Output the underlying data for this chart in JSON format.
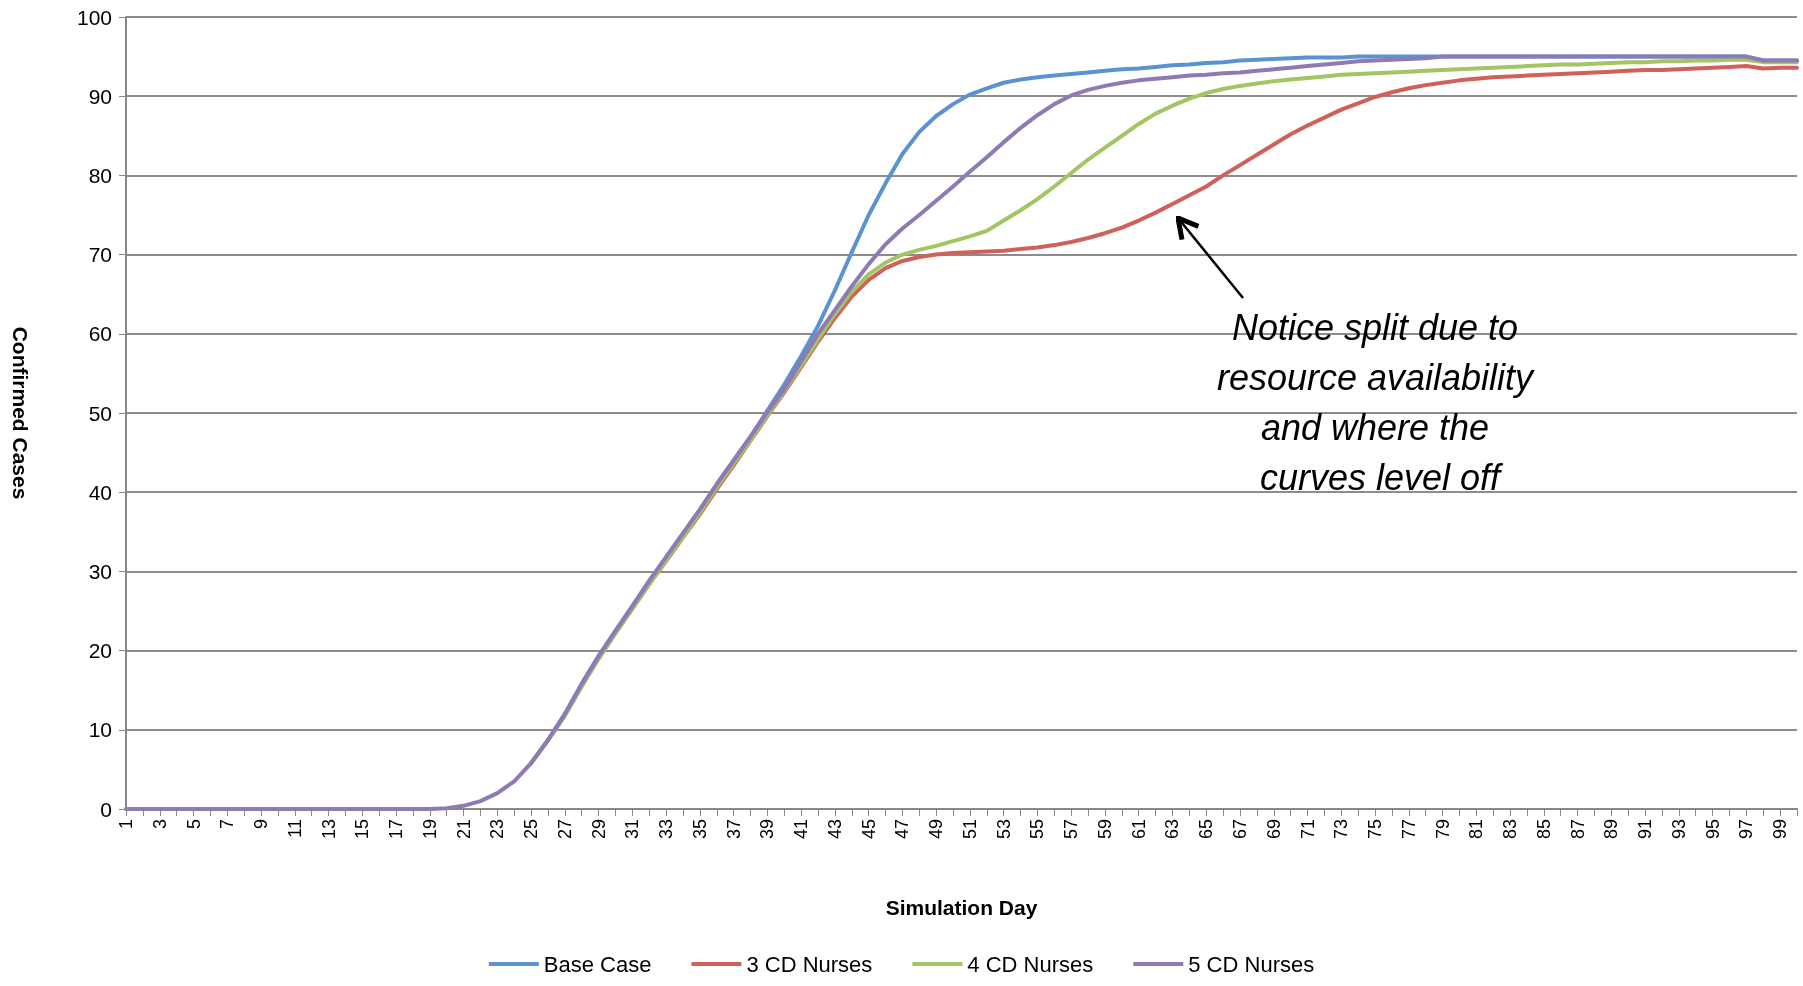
{
  "chart_data": {
    "type": "line",
    "xlabel": "Simulation Day",
    "ylabel": "Confirmed Cases",
    "categories": [
      "1",
      null,
      "3",
      null,
      "5",
      null,
      "7",
      null,
      "9",
      null,
      "11",
      null,
      "13",
      null,
      "15",
      null,
      "17",
      null,
      "19",
      null,
      "21",
      null,
      "23",
      null,
      "25",
      null,
      "27",
      null,
      "29",
      null,
      "31",
      null,
      "33",
      null,
      "35",
      null,
      "37",
      null,
      "39",
      null,
      "41",
      null,
      "43",
      null,
      "45",
      null,
      "47",
      null,
      "49",
      null,
      "51",
      null,
      "53",
      null,
      "55",
      null,
      "57",
      null,
      "59",
      null,
      "61",
      null,
      "63",
      null,
      "65",
      null,
      "67",
      null,
      "69",
      null,
      "71",
      null,
      "73",
      null,
      "75",
      null,
      "77",
      null,
      "79",
      null,
      "81",
      null,
      "83",
      null,
      "85",
      null,
      "87",
      null,
      "89",
      null,
      "91",
      null,
      "93",
      null,
      "95",
      null,
      "97",
      null,
      "99",
      null
    ],
    "ylim": [
      0,
      100
    ],
    "yticks": [
      0,
      10,
      20,
      30,
      40,
      50,
      60,
      70,
      80,
      90,
      100
    ],
    "grid": "y",
    "legend": "bottom",
    "marker": "none",
    "line_style": "solid",
    "annotations": [
      "Notice split due to resource availability and where the curves level off"
    ],
    "series": [
      {
        "name": "Base Case",
        "color": "#5a93cf",
        "values": [
          null,
          null,
          null,
          null,
          null,
          null,
          null,
          null,
          null,
          null,
          null,
          null,
          null,
          null,
          null,
          null,
          null,
          null,
          null,
          null,
          null,
          null,
          null,
          null,
          5.8,
          8.7,
          12,
          15.8,
          19.3,
          22.5,
          25.6,
          28.8,
          31.8,
          34.8,
          37.8,
          41,
          44,
          47,
          50.3,
          53.6,
          57.2,
          61,
          65.5,
          70.3,
          75,
          79,
          82.7,
          85.5,
          87.5,
          89,
          90.2,
          91,
          91.7,
          92.1,
          92.4,
          92.6,
          92.8,
          93,
          93.2,
          93.4,
          93.5,
          93.7,
          93.9,
          94,
          94.2,
          94.3,
          94.5,
          94.6,
          94.7,
          94.8,
          94.9,
          94.9,
          94.9,
          95,
          95,
          95,
          95,
          95,
          95,
          95,
          95,
          95,
          95,
          95,
          95,
          95,
          95,
          95,
          95,
          95,
          95,
          95,
          95,
          95,
          95,
          95,
          95,
          94.5,
          94.5,
          94.5
        ]
      },
      {
        "name": "3 CD Nurses",
        "color": "#d0605a",
        "values": [
          null,
          null,
          null,
          null,
          null,
          null,
          null,
          null,
          null,
          null,
          null,
          null,
          null,
          null,
          null,
          null,
          null,
          null,
          null,
          null,
          null,
          null,
          null,
          null,
          5.8,
          8.7,
          11.8,
          15.5,
          19,
          22.2,
          25.3,
          28.4,
          31.3,
          34.3,
          37.2,
          40.4,
          43.4,
          46.5,
          49.6,
          52.6,
          55.8,
          59,
          62,
          64.7,
          66.8,
          68.3,
          69.2,
          69.7,
          70,
          70.2,
          70.3,
          70.4,
          70.5,
          70.7,
          70.9,
          71.2,
          71.6,
          72.1,
          72.7,
          73.4,
          74.3,
          75.3,
          76.4,
          77.5,
          78.6,
          80,
          81.3,
          82.6,
          83.9,
          85.2,
          86.3,
          87.3,
          88.3,
          89.1,
          89.9,
          90.5,
          91,
          91.4,
          91.7,
          92,
          92.2,
          92.4,
          92.5,
          92.6,
          92.7,
          92.8,
          92.9,
          93,
          93.1,
          93.2,
          93.3,
          93.3,
          93.4,
          93.5,
          93.6,
          93.7,
          93.8,
          93.5,
          93.6,
          93.6
        ]
      },
      {
        "name": "4 CD Nurses",
        "color": "#a3c563",
        "values": [
          null,
          null,
          null,
          null,
          null,
          null,
          null,
          null,
          null,
          null,
          null,
          null,
          null,
          null,
          null,
          null,
          null,
          null,
          null,
          null,
          null,
          null,
          null,
          null,
          5.8,
          8.7,
          11.8,
          15.5,
          19,
          22.2,
          25.3,
          28.4,
          31.4,
          34.4,
          37.4,
          40.6,
          43.6,
          46.6,
          49.7,
          52.8,
          56,
          59.3,
          62.5,
          65.3,
          67.5,
          69,
          70,
          70.6,
          71.1,
          71.7,
          72.3,
          73,
          74.3,
          75.6,
          77,
          78.6,
          80.3,
          82,
          83.5,
          85,
          86.5,
          87.8,
          88.8,
          89.7,
          90.4,
          90.9,
          91.3,
          91.6,
          91.9,
          92.1,
          92.3,
          92.5,
          92.7,
          92.8,
          92.9,
          93,
          93.1,
          93.2,
          93.3,
          93.4,
          93.5,
          93.6,
          93.7,
          93.8,
          93.9,
          94,
          94,
          94.1,
          94.2,
          94.3,
          94.3,
          94.4,
          94.4,
          94.5,
          94.5,
          94.6,
          94.6,
          94.3,
          94.3,
          94.3
        ]
      },
      {
        "name": "5 CD Nurses",
        "color": "#8e7ab5",
        "values": [
          0,
          0,
          0,
          0,
          0,
          0,
          0,
          0,
          0,
          0,
          0,
          0,
          0,
          0,
          0,
          0,
          0,
          0,
          0,
          0.1,
          0.4,
          1,
          2,
          3.5,
          5.8,
          8.7,
          12,
          15.8,
          19.3,
          22.5,
          25.6,
          28.8,
          31.8,
          34.8,
          37.8,
          41,
          44,
          47,
          50.1,
          53,
          56.5,
          60,
          63,
          66,
          68.8,
          71.3,
          73.3,
          75,
          76.8,
          78.6,
          80.5,
          82.3,
          84.2,
          86,
          87.6,
          89,
          90.1,
          90.8,
          91.3,
          91.7,
          92,
          92.2,
          92.4,
          92.6,
          92.7,
          92.9,
          93,
          93.2,
          93.4,
          93.6,
          93.8,
          94,
          94.2,
          94.4,
          94.5,
          94.6,
          94.7,
          94.8,
          95,
          95,
          95,
          95,
          95,
          95,
          95,
          95,
          95,
          95,
          95,
          95,
          95,
          95,
          95,
          95,
          95,
          95,
          95,
          94.5,
          94.5,
          94.5
        ]
      }
    ]
  }
}
